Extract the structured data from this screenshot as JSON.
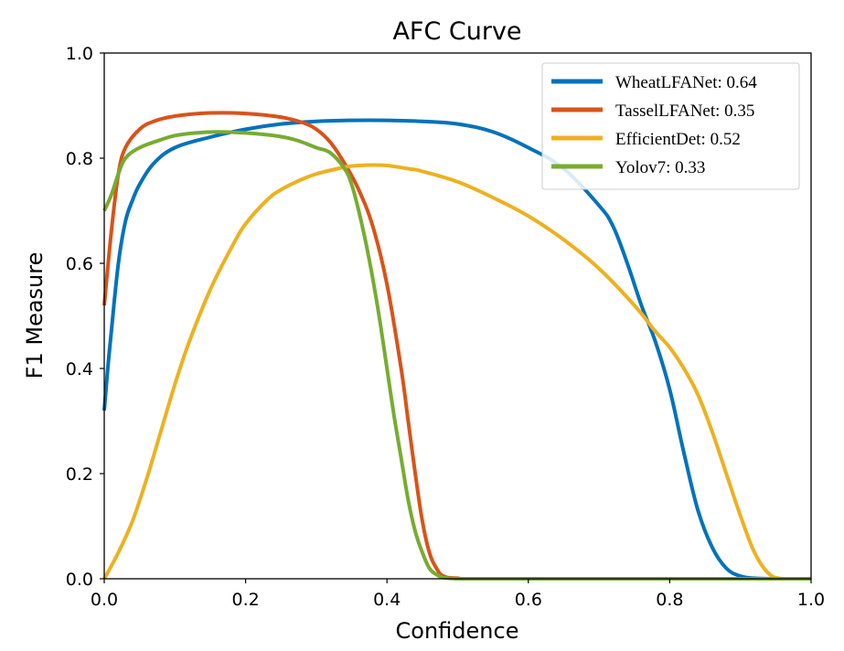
{
  "chart_data": {
    "type": "line",
    "title": "AFC Curve",
    "xlabel": "Confidence",
    "ylabel": "F1 Measure",
    "xlim": [
      0.0,
      1.0
    ],
    "ylim": [
      0.0,
      1.0
    ],
    "xticks": [
      "0.0",
      "0.2",
      "0.4",
      "0.6",
      "0.8",
      "1.0"
    ],
    "yticks": [
      "0.0",
      "0.2",
      "0.4",
      "0.6",
      "0.8",
      "1.0"
    ],
    "grid": false,
    "legend_position": "top-right",
    "series": [
      {
        "name": "WheatLFANet: 0.64",
        "color": "#0072BD",
        "x": [
          0.0,
          0.005,
          0.01,
          0.02,
          0.03,
          0.04,
          0.05,
          0.07,
          0.1,
          0.15,
          0.2,
          0.25,
          0.3,
          0.35,
          0.4,
          0.45,
          0.5,
          0.55,
          0.6,
          0.65,
          0.7,
          0.72,
          0.74,
          0.76,
          0.78,
          0.8,
          0.82,
          0.84,
          0.86,
          0.88,
          0.9,
          0.92,
          0.95,
          1.0
        ],
        "y": [
          0.32,
          0.4,
          0.47,
          0.6,
          0.68,
          0.72,
          0.75,
          0.79,
          0.82,
          0.84,
          0.855,
          0.865,
          0.87,
          0.872,
          0.872,
          0.87,
          0.865,
          0.85,
          0.82,
          0.78,
          0.71,
          0.67,
          0.6,
          0.52,
          0.45,
          0.36,
          0.24,
          0.13,
          0.06,
          0.02,
          0.005,
          0.001,
          0.0,
          0.0
        ]
      },
      {
        "name": "TasselLFANet: 0.35",
        "color": "#D95319",
        "x": [
          0.0,
          0.01,
          0.02,
          0.03,
          0.05,
          0.07,
          0.1,
          0.15,
          0.2,
          0.25,
          0.28,
          0.3,
          0.32,
          0.34,
          0.36,
          0.38,
          0.4,
          0.42,
          0.43,
          0.44,
          0.45,
          0.46,
          0.47,
          0.48,
          0.5,
          0.55,
          1.0
        ],
        "y": [
          0.52,
          0.66,
          0.77,
          0.82,
          0.855,
          0.87,
          0.88,
          0.886,
          0.885,
          0.878,
          0.868,
          0.855,
          0.83,
          0.79,
          0.74,
          0.67,
          0.56,
          0.4,
          0.3,
          0.2,
          0.11,
          0.05,
          0.02,
          0.005,
          0.001,
          0.0,
          0.0
        ]
      },
      {
        "name": "EfficientDet: 0.52",
        "color": "#EDB120",
        "x": [
          0.0,
          0.02,
          0.04,
          0.06,
          0.08,
          0.1,
          0.12,
          0.15,
          0.18,
          0.2,
          0.23,
          0.25,
          0.28,
          0.3,
          0.33,
          0.35,
          0.38,
          0.4,
          0.43,
          0.45,
          0.5,
          0.55,
          0.6,
          0.65,
          0.7,
          0.75,
          0.78,
          0.8,
          0.82,
          0.84,
          0.86,
          0.88,
          0.9,
          0.92,
          0.94,
          0.96,
          1.0
        ],
        "y": [
          0.0,
          0.05,
          0.11,
          0.19,
          0.28,
          0.37,
          0.45,
          0.55,
          0.63,
          0.675,
          0.72,
          0.74,
          0.76,
          0.77,
          0.78,
          0.785,
          0.787,
          0.786,
          0.78,
          0.775,
          0.755,
          0.725,
          0.69,
          0.645,
          0.59,
          0.52,
          0.47,
          0.44,
          0.4,
          0.35,
          0.28,
          0.2,
          0.12,
          0.05,
          0.01,
          0.0,
          0.0
        ]
      },
      {
        "name": "Yolov7: 0.33",
        "color": "#77AC30",
        "x": [
          0.0,
          0.01,
          0.02,
          0.03,
          0.05,
          0.08,
          0.1,
          0.13,
          0.16,
          0.2,
          0.24,
          0.27,
          0.3,
          0.32,
          0.34,
          0.35,
          0.36,
          0.37,
          0.38,
          0.39,
          0.4,
          0.41,
          0.42,
          0.43,
          0.44,
          0.45,
          0.46,
          0.47,
          0.48,
          0.5,
          0.55,
          1.0
        ],
        "y": [
          0.7,
          0.73,
          0.77,
          0.8,
          0.82,
          0.835,
          0.843,
          0.848,
          0.85,
          0.848,
          0.843,
          0.835,
          0.82,
          0.81,
          0.78,
          0.75,
          0.7,
          0.64,
          0.57,
          0.49,
          0.4,
          0.31,
          0.23,
          0.15,
          0.09,
          0.05,
          0.02,
          0.008,
          0.002,
          0.0,
          0.0,
          0.0
        ]
      }
    ]
  }
}
